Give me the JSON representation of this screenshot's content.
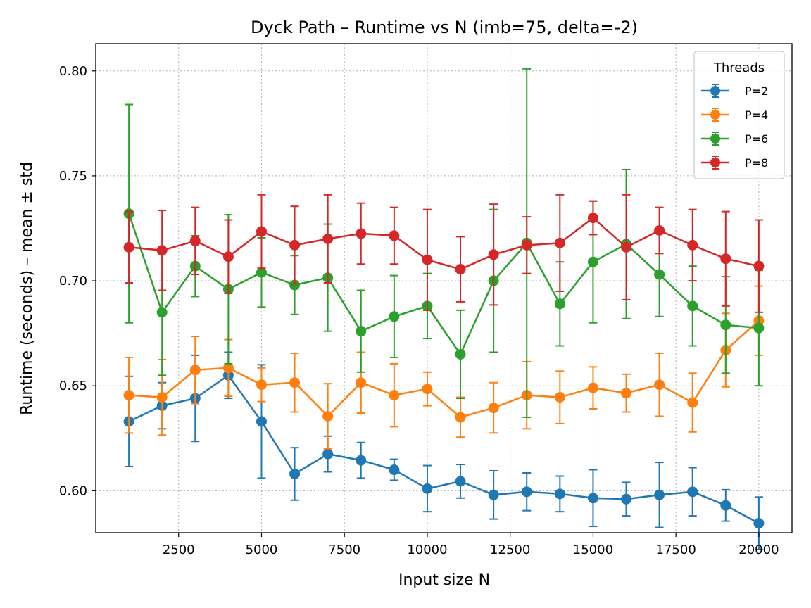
{
  "chart_data": {
    "type": "line",
    "title": "Dyck Path – Runtime vs N (imb=75, delta=-2)",
    "xlabel": "Input size N",
    "ylabel": "Runtime (seconds) – mean ± std",
    "xlim": [
      0,
      21000
    ],
    "ylim": [
      0.58,
      0.813
    ],
    "xticks": [
      2500,
      5000,
      7500,
      10000,
      12500,
      15000,
      17500,
      20000
    ],
    "xtick_labels": [
      "2500",
      "5000",
      "7500",
      "10000",
      "12500",
      "15000",
      "17500",
      "20000"
    ],
    "yticks": [
      0.6,
      0.65,
      0.7,
      0.75,
      0.8
    ],
    "ytick_labels": [
      "0.60",
      "0.65",
      "0.70",
      "0.75",
      "0.80"
    ],
    "grid": true,
    "error_bars": true,
    "legend": {
      "title": "Threads",
      "position": "top-right"
    },
    "x": [
      1000,
      2000,
      3000,
      4000,
      5000,
      6000,
      7000,
      8000,
      9000,
      10000,
      11000,
      12000,
      13000,
      14000,
      15000,
      16000,
      17000,
      18000,
      19000,
      20000
    ],
    "series": [
      {
        "name": "P=2",
        "color": "#1f77b4",
        "values": [
          0.633,
          0.6405,
          0.644,
          0.655,
          0.633,
          0.608,
          0.6175,
          0.6145,
          0.61,
          0.601,
          0.6045,
          0.598,
          0.5995,
          0.5985,
          0.5965,
          0.596,
          0.598,
          0.5995,
          0.593,
          0.5845
        ],
        "errors": [
          0.0215,
          0.011,
          0.0205,
          0.011,
          0.027,
          0.0125,
          0.0085,
          0.0085,
          0.005,
          0.011,
          0.008,
          0.0115,
          0.009,
          0.0085,
          0.0135,
          0.008,
          0.0155,
          0.0115,
          0.0075,
          0.0125
        ]
      },
      {
        "name": "P=4",
        "color": "#ff7f0e",
        "values": [
          0.6455,
          0.6445,
          0.6575,
          0.6585,
          0.6505,
          0.6515,
          0.6355,
          0.6515,
          0.6455,
          0.6485,
          0.635,
          0.6395,
          0.6455,
          0.6445,
          0.649,
          0.6465,
          0.6505,
          0.642,
          0.667,
          0.681
        ],
        "errors": [
          0.018,
          0.018,
          0.016,
          0.0135,
          0.008,
          0.014,
          0.0155,
          0.0145,
          0.015,
          0.008,
          0.0095,
          0.012,
          0.016,
          0.0125,
          0.01,
          0.009,
          0.015,
          0.014,
          0.0175,
          0.0165
        ]
      },
      {
        "name": "P=6",
        "color": "#2ca02c",
        "values": [
          0.732,
          0.685,
          0.707,
          0.696,
          0.704,
          0.698,
          0.7015,
          0.676,
          0.683,
          0.688,
          0.665,
          0.7,
          0.718,
          0.689,
          0.709,
          0.7175,
          0.703,
          0.688,
          0.679,
          0.6775
        ],
        "errors": [
          0.052,
          0.03,
          0.0145,
          0.0355,
          0.0165,
          0.014,
          0.0255,
          0.0195,
          0.0195,
          0.0155,
          0.021,
          0.034,
          0.083,
          0.02,
          0.029,
          0.0355,
          0.02,
          0.019,
          0.023,
          0.0275
        ]
      },
      {
        "name": "P=8",
        "color": "#d62728",
        "values": [
          0.716,
          0.7145,
          0.719,
          0.7115,
          0.7235,
          0.717,
          0.72,
          0.7225,
          0.7215,
          0.71,
          0.7055,
          0.7125,
          0.717,
          0.718,
          0.73,
          0.716,
          0.724,
          0.717,
          0.7105,
          0.707
        ],
        "errors": [
          0.017,
          0.019,
          0.016,
          0.0175,
          0.0175,
          0.0185,
          0.021,
          0.0145,
          0.0135,
          0.024,
          0.0155,
          0.024,
          0.0135,
          0.023,
          0.008,
          0.025,
          0.011,
          0.017,
          0.0225,
          0.022
        ]
      }
    ]
  }
}
